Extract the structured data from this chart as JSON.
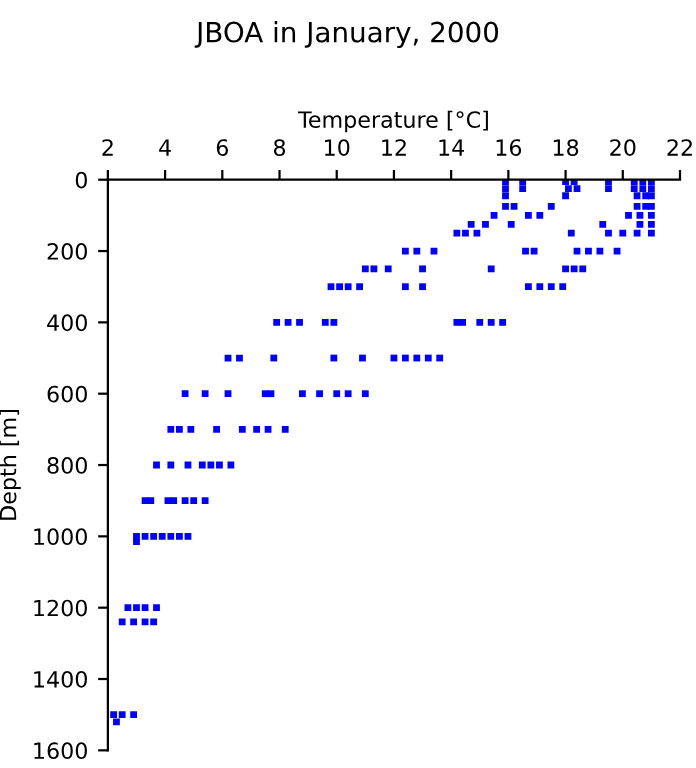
{
  "chart_data": {
    "type": "scatter",
    "title": "JBOA in January, 2000",
    "xlabel": "Temperature [°C]",
    "ylabel": "Depth [m]",
    "xlim": [
      2,
      22
    ],
    "xticks": [
      2,
      4,
      6,
      8,
      10,
      12,
      14,
      16,
      18,
      20,
      22
    ],
    "ylim": [
      1600,
      0
    ],
    "yticks": [
      0,
      200,
      400,
      600,
      800,
      1000,
      1200,
      1400,
      1600
    ],
    "grid": false,
    "marker": "square",
    "legend": false,
    "series": [
      {
        "color": "#0000ff",
        "x": [
          15.9,
          16.5,
          18.0,
          18.3,
          19.5,
          20.4,
          20.7,
          21.0,
          15.9,
          16.5,
          18.1,
          18.4,
          19.5,
          20.4,
          20.7,
          21.0,
          15.9,
          18.0,
          20.5,
          20.8,
          21.0,
          15.9,
          16.2,
          17.5,
          20.5,
          20.8,
          21.0,
          15.5,
          16.7,
          17.1,
          20.2,
          20.6,
          21.0,
          14.7,
          15.2,
          16.1,
          19.3,
          20.6,
          21.0,
          14.2,
          14.5,
          14.9,
          18.2,
          19.5,
          20.0,
          20.5,
          21.0,
          12.4,
          12.8,
          13.4,
          16.6,
          16.9,
          18.4,
          18.8,
          19.2,
          19.8,
          11.0,
          11.3,
          11.8,
          13.0,
          15.4,
          18.0,
          18.3,
          18.6,
          9.8,
          10.1,
          10.4,
          10.8,
          12.4,
          13.0,
          16.7,
          17.1,
          17.5,
          17.9,
          7.9,
          8.3,
          8.7,
          9.6,
          9.9,
          14.2,
          14.4,
          15.0,
          15.4,
          15.8,
          6.2,
          6.6,
          7.8,
          9.9,
          10.9,
          12.0,
          12.4,
          12.8,
          13.2,
          13.6,
          4.7,
          5.4,
          6.2,
          7.5,
          7.7,
          8.8,
          9.4,
          10.0,
          10.4,
          11.0,
          4.2,
          4.5,
          4.9,
          5.8,
          6.7,
          7.2,
          7.6,
          8.2,
          3.7,
          4.2,
          4.8,
          5.3,
          5.6,
          5.9,
          6.3,
          3.3,
          3.5,
          4.1,
          4.3,
          4.7,
          5.0,
          5.4,
          3.0,
          3.3,
          3.6,
          3.9,
          4.2,
          4.5,
          4.8,
          3.0,
          2.7,
          3.0,
          3.3,
          3.7,
          2.5,
          2.9,
          3.3,
          3.6,
          2.2,
          2.5,
          2.9,
          2.3
        ],
        "values": [
          5,
          5,
          5,
          5,
          5,
          5,
          5,
          5,
          25,
          25,
          25,
          25,
          25,
          25,
          25,
          25,
          45,
          45,
          45,
          45,
          45,
          75,
          75,
          75,
          75,
          75,
          75,
          100,
          100,
          100,
          100,
          100,
          100,
          125,
          125,
          125,
          125,
          125,
          125,
          150,
          150,
          150,
          150,
          150,
          150,
          150,
          150,
          200,
          200,
          200,
          200,
          200,
          200,
          200,
          200,
          200,
          250,
          250,
          250,
          250,
          250,
          250,
          250,
          250,
          300,
          300,
          300,
          300,
          300,
          300,
          300,
          300,
          300,
          300,
          400,
          400,
          400,
          400,
          400,
          400,
          400,
          400,
          400,
          400,
          500,
          500,
          500,
          500,
          500,
          500,
          500,
          500,
          500,
          500,
          600,
          600,
          600,
          600,
          600,
          600,
          600,
          600,
          600,
          600,
          700,
          700,
          700,
          700,
          700,
          700,
          700,
          700,
          800,
          800,
          800,
          800,
          800,
          800,
          800,
          900,
          900,
          900,
          900,
          900,
          900,
          900,
          1000,
          1000,
          1000,
          1000,
          1000,
          1000,
          1000,
          1015,
          1200,
          1200,
          1200,
          1200,
          1240,
          1240,
          1240,
          1240,
          1500,
          1500,
          1500,
          1520
        ]
      }
    ]
  }
}
